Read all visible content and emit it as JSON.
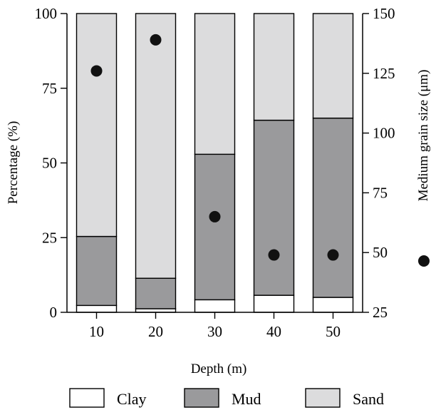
{
  "chart_data": {
    "type": "bar",
    "stacked": true,
    "xlabel": "Depth (m)",
    "ylabel": "Percentage (%)",
    "y2label": "Medium grain size (μm)",
    "categories": [
      "10",
      "20",
      "30",
      "40",
      "50"
    ],
    "ylim": [
      0,
      100
    ],
    "y2lim": [
      25,
      150
    ],
    "yticks": [
      "0",
      "25",
      "50",
      "75",
      "100"
    ],
    "y2ticks": [
      "25",
      "50",
      "75",
      "100",
      "125",
      "150"
    ],
    "series": [
      {
        "name": "Clay",
        "color": "#ffffff",
        "values": [
          2.3,
          1.2,
          4.2,
          5.7,
          5.0
        ]
      },
      {
        "name": "Mud",
        "color": "#9a9a9c",
        "values": [
          23.1,
          10.2,
          48.7,
          58.6,
          60.0
        ]
      },
      {
        "name": "Sand",
        "color": "#dcdcdd",
        "values": [
          74.6,
          88.6,
          47.1,
          35.7,
          35.0
        ]
      }
    ],
    "grain_size": {
      "marker": "filled-circle",
      "values": [
        126,
        139,
        65,
        49,
        49
      ]
    },
    "legend_position": "bottom"
  }
}
